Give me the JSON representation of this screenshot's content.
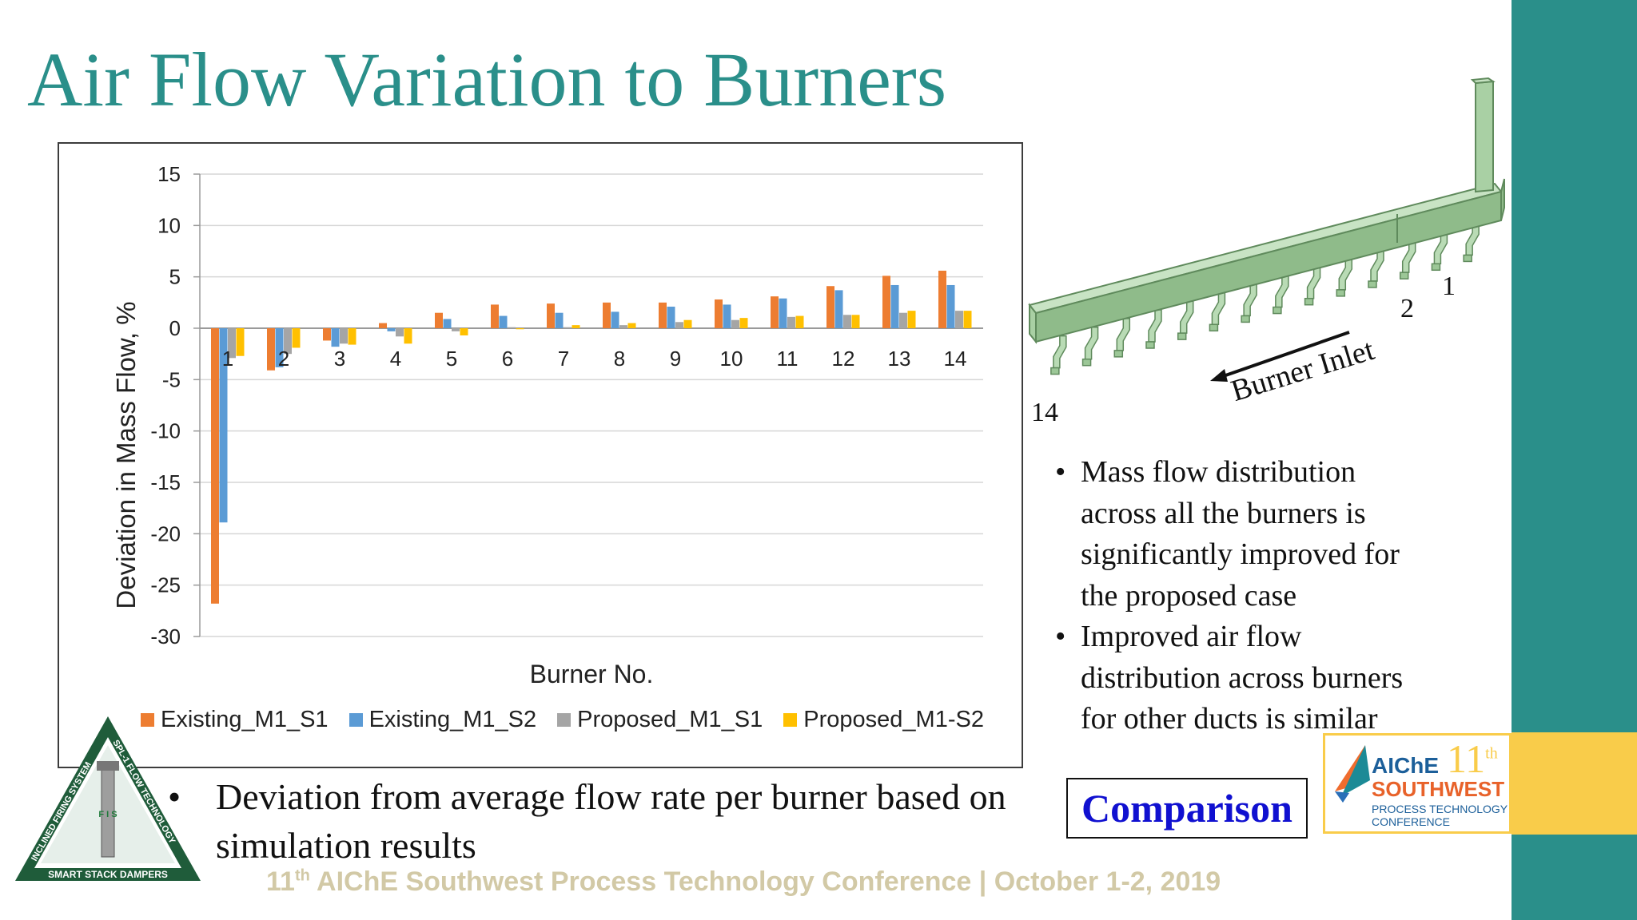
{
  "slide": {
    "title": "Air Flow Variation to Burners",
    "footer_prefix": "11",
    "footer_sup": "th",
    "footer_text": " AIChE Southwest Process Technology Conference | October 1-2, 2019"
  },
  "chart_data": {
    "type": "bar",
    "title": "",
    "xlabel": "Burner No.",
    "ylabel": "Deviation in Mass Flow, %",
    "ylim": [
      -30,
      15
    ],
    "yticks": [
      15,
      10,
      5,
      0,
      -5,
      -10,
      -15,
      -20,
      -25,
      -30
    ],
    "grid": true,
    "legend_position": "bottom",
    "categories": [
      "1",
      "2",
      "3",
      "4",
      "5",
      "6",
      "7",
      "8",
      "9",
      "10",
      "11",
      "12",
      "13",
      "14"
    ],
    "series": [
      {
        "name": "Existing_M1_S1",
        "color": "#ed7d31",
        "values": [
          -26.8,
          -4.1,
          -1.2,
          0.5,
          1.5,
          2.3,
          2.4,
          2.5,
          2.5,
          2.8,
          3.1,
          4.1,
          5.1,
          5.6
        ]
      },
      {
        "name": "Existing_M1_S2",
        "color": "#5b9bd5",
        "values": [
          -18.9,
          -3.8,
          -1.8,
          -0.3,
          0.9,
          1.2,
          1.5,
          1.6,
          2.1,
          2.3,
          2.9,
          3.7,
          4.2,
          4.2
        ]
      },
      {
        "name": "Proposed_M1_S1",
        "color": "#a5a5a5",
        "values": [
          -2.9,
          -2.5,
          -1.5,
          -0.8,
          -0.3,
          0.1,
          0.1,
          0.3,
          0.6,
          0.8,
          1.1,
          1.3,
          1.5,
          1.7
        ]
      },
      {
        "name": "Proposed_M1-S2",
        "color": "#ffc000",
        "values": [
          -2.7,
          -1.9,
          -1.6,
          -1.5,
          -0.7,
          -0.1,
          0.3,
          0.5,
          0.8,
          1.0,
          1.2,
          1.3,
          1.7,
          1.7
        ]
      }
    ]
  },
  "figure": {
    "label_1": "1",
    "label_2": "2",
    "label_14": "14",
    "inlet_label": "Burner Inlet"
  },
  "bullets": [
    "Mass flow distribution across all the burners is significantly improved for the proposed case",
    "Improved air flow distribution across burners for other ducts is similar"
  ],
  "main_bullet": "Deviation from average flow rate per burner based on simulation results",
  "comparison_label": "Comparison",
  "aiche_logo": {
    "brand": "AIChE",
    "number": "11",
    "number_sup": "th",
    "region": "SOUTHWEST",
    "line1": "PROCESS TECHNOLOGY",
    "line2": "CONFERENCE"
  },
  "fis_logo": {
    "left_text": "INCLINED FIRING SYSTEM",
    "right_text": "SPL-1 FLOW TECHNOLOGY",
    "bottom_text": "SMART STACK DAMPERS",
    "center_text": "F I S"
  }
}
